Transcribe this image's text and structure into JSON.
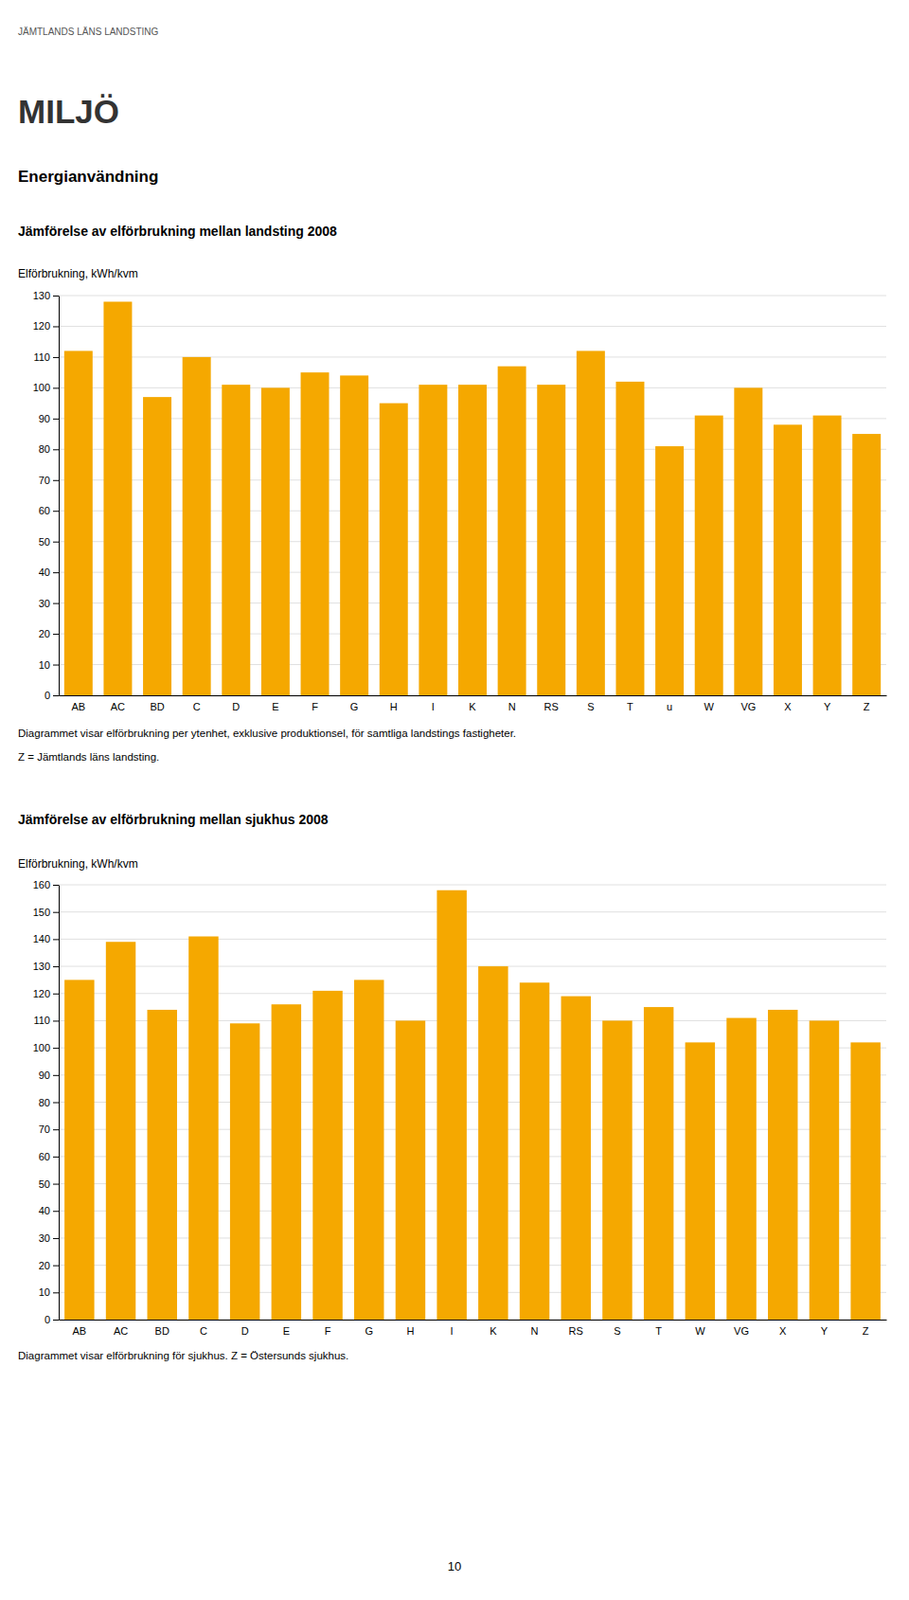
{
  "header_text": "JÄMTLANDS LÄNS LANDSTING",
  "section_title": "MILJÖ",
  "heading": "Energianvändning",
  "page_number": "10",
  "chart_data": [
    {
      "type": "bar",
      "title": "Jämförelse av elförbrukning mellan landsting 2008",
      "ylabel": "Elförbrukning, kWh/kvm",
      "categories": [
        "AB",
        "AC",
        "BD",
        "C",
        "D",
        "E",
        "F",
        "G",
        "H",
        "I",
        "K",
        "N",
        "RS",
        "S",
        "T",
        "u",
        "W",
        "VG",
        "X",
        "Y",
        "Z"
      ],
      "values": [
        112,
        128,
        97,
        110,
        101,
        100,
        105,
        104,
        95,
        101,
        101,
        107,
        101,
        112,
        102,
        81,
        91,
        100,
        88,
        91,
        85
      ],
      "color": "#F5A800",
      "ylim": [
        0,
        130
      ],
      "yticks": [
        0,
        10,
        20,
        30,
        40,
        50,
        60,
        70,
        80,
        90,
        100,
        110,
        120,
        130
      ],
      "grid": true,
      "annotations": [
        "Diagrammet visar elförbrukning per ytenhet, exklusive produktionsel, för samtliga landstings fastigheter.",
        "Z = Jämtlands läns landsting."
      ]
    },
    {
      "type": "bar",
      "title": "Jämförelse av elförbrukning mellan sjukhus 2008",
      "ylabel": "Elförbrukning, kWh/kvm",
      "categories": [
        "AB",
        "AC",
        "BD",
        "C",
        "D",
        "E",
        "F",
        "G",
        "H",
        "I",
        "K",
        "N",
        "RS",
        "S",
        "T",
        "W",
        "VG",
        "X",
        "Y",
        "Z"
      ],
      "values": [
        125,
        139,
        114,
        141,
        109,
        116,
        121,
        125,
        110,
        158,
        130,
        124,
        119,
        110,
        115,
        102,
        111,
        114,
        110,
        102
      ],
      "color": "#F5A800",
      "ylim": [
        0,
        160
      ],
      "yticks": [
        0,
        10,
        20,
        30,
        40,
        50,
        60,
        70,
        80,
        90,
        100,
        110,
        120,
        130,
        140,
        150,
        160
      ],
      "grid": true,
      "annotations": [
        "Diagrammet visar elförbrukning för sjukhus. Z = Östersunds sjukhus."
      ]
    }
  ]
}
